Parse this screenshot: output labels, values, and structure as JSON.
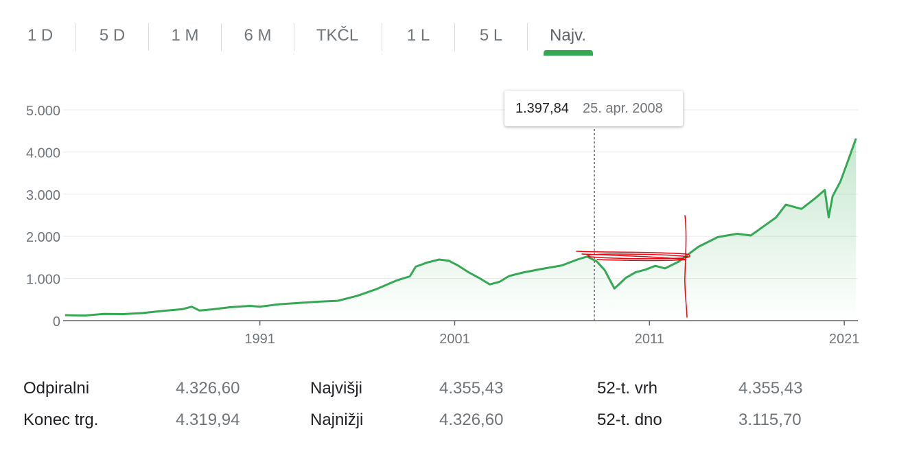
{
  "tabs": [
    "1 D",
    "5 D",
    "1 M",
    "6 M",
    "TKČL",
    "1 L",
    "5 L",
    "Najv."
  ],
  "active_tab": "Najv.",
  "tooltip": {
    "value": "1.397,84",
    "date": "25. apr. 2008"
  },
  "colors": {
    "line": "#34a853",
    "annotation": "#e8060e",
    "grid": "#ebebeb",
    "axis": "#5f6368"
  },
  "stats": {
    "open_label": "Odpiralni",
    "open_value": "4.326,60",
    "close_label": "Konec trg.",
    "close_value": "4.319,94",
    "high_label": "Najvišji",
    "high_value": "4.355,43",
    "low_label": "Najnižji",
    "low_value": "4.326,60",
    "wk52_high_label": "52-t. vrh",
    "wk52_high_value": "4.355,43",
    "wk52_low_label": "52-t. dno",
    "wk52_low_value": "3.115,70"
  },
  "chart_data": {
    "type": "line",
    "x_ticks": [
      "1991",
      "2001",
      "2011",
      "2021"
    ],
    "y_ticks": [
      "0",
      "1.000",
      "2.000",
      "3.000",
      "4.000",
      "5.000"
    ],
    "ylim": [
      0,
      5000
    ],
    "xlim": [
      1980.9,
      2021.7
    ],
    "grid": true,
    "series": [
      {
        "x": [
          1981.0,
          1982.0,
          1983.0,
          1984.0,
          1985.0,
          1986.0,
          1987.0,
          1987.5,
          1987.9,
          1988.5,
          1989.5,
          1990.5,
          1991.0,
          1992.0,
          1993.0,
          1994.0,
          1995.0,
          1996.0,
          1997.0,
          1998.0,
          1998.7,
          1999.0,
          1999.6,
          2000.2,
          2000.7,
          2001.2,
          2001.7,
          2002.3,
          2002.8,
          2003.3,
          2003.8,
          2004.5,
          2005.5,
          2006.5,
          2007.3,
          2007.8,
          2008.3,
          2008.7,
          2009.2,
          2009.8,
          2010.3,
          2010.8,
          2011.3,
          2011.8,
          2012.5,
          2013.5,
          2014.5,
          2015.5,
          2016.2,
          2016.9,
          2017.5,
          2018.0,
          2018.8,
          2019.5,
          2020.0,
          2020.2,
          2020.4,
          2020.8,
          2021.2,
          2021.6
        ],
        "y": [
          130,
          120,
          160,
          155,
          180,
          230,
          270,
          330,
          240,
          265,
          320,
          350,
          330,
          390,
          420,
          450,
          470,
          590,
          750,
          950,
          1050,
          1280,
          1380,
          1450,
          1420,
          1300,
          1150,
          1000,
          860,
          920,
          1060,
          1140,
          1230,
          1310,
          1450,
          1520,
          1400,
          1200,
          760,
          1020,
          1150,
          1210,
          1300,
          1240,
          1400,
          1750,
          1980,
          2060,
          2020,
          2250,
          2450,
          2750,
          2650,
          2900,
          3100,
          2450,
          2950,
          3300,
          3800,
          4320
        ]
      }
    ]
  }
}
